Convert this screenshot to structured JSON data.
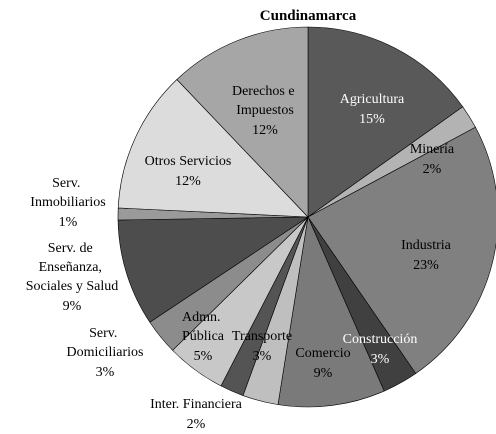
{
  "chart_data": {
    "type": "pie",
    "title": "Cundinamarca",
    "categories": [
      "Agricultura",
      "Minería",
      "Industria",
      "Construcción",
      "Comercio",
      "Transporte",
      "Inter. Financiera",
      "Admn. Pública",
      "Serv. Domiciliarios",
      "Serv. de Enseñanza, Sociales y Salud",
      "Serv. Inmobiliarios",
      "Otros Servicios",
      "Derechos e Impuestos"
    ],
    "values": [
      15,
      2,
      23,
      3,
      9,
      3,
      2,
      5,
      3,
      9,
      1,
      12,
      12
    ],
    "value_labels": [
      "15%",
      "2%",
      "23%",
      "3%",
      "9%",
      "3%",
      "2%",
      "5%",
      "3%",
      "9%",
      "1%",
      "12%",
      "12%"
    ],
    "colors": [
      "#595959",
      "#b3b3b3",
      "#808080",
      "#404040",
      "#7a7a7a",
      "#bfbfbf",
      "#545454",
      "#c8c8c8",
      "#8c8c8c",
      "#4d4d4d",
      "#9a9a9a",
      "#dcdcdc",
      "#a6a6a6"
    ]
  }
}
